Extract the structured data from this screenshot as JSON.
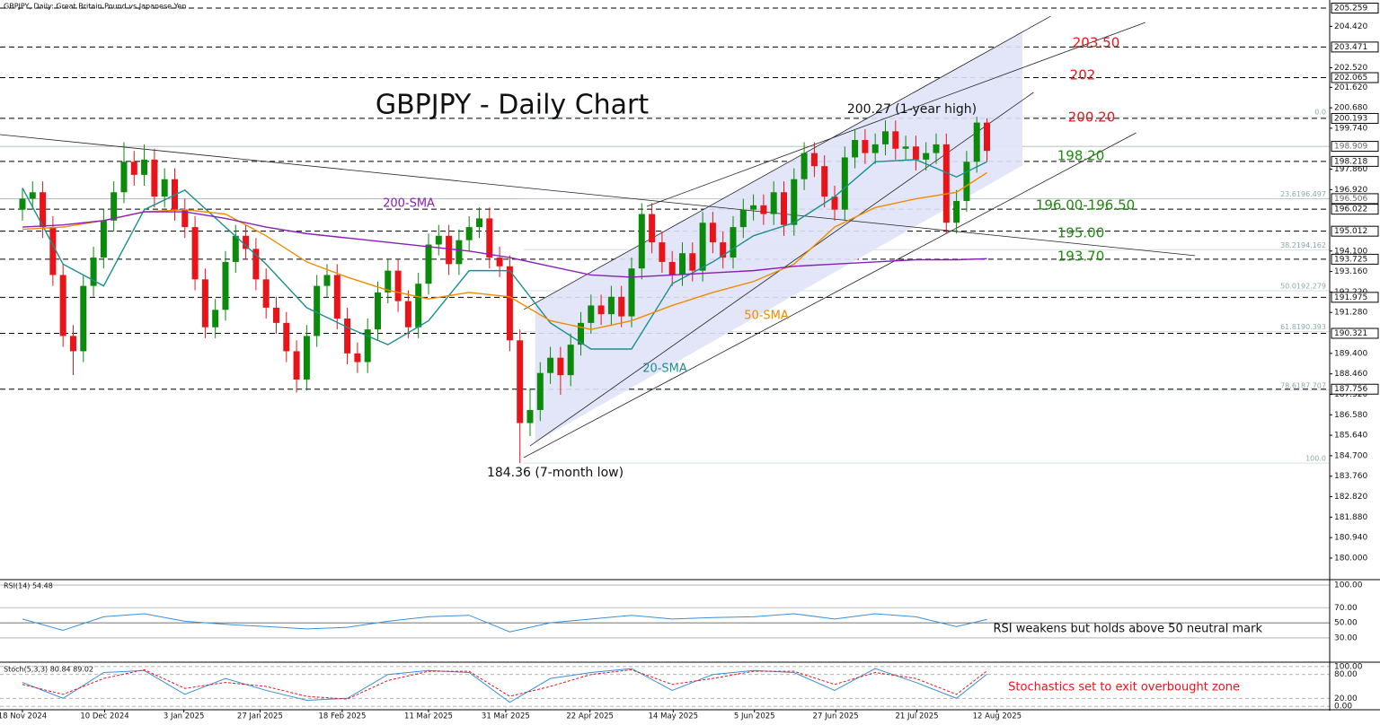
{
  "chart_data": {
    "type": "candlestick",
    "header": "GBPJPY, Daily:  Great Britain Pound vs Japanese Yen",
    "title": "GBPJPY - Daily Chart",
    "up_color": "#0b8a0b",
    "down_color": "#e8141a",
    "xlim": [
      -2.21,
      128.76
    ],
    "xticks": [
      {
        "value": 0,
        "label": "18 Nov 2024"
      },
      {
        "value": 8.1,
        "label": "10 Dec 2024"
      },
      {
        "value": 15.9,
        "label": "3 Jan 2025"
      },
      {
        "value": 23.4,
        "label": "27 Jan 2025"
      },
      {
        "value": 31.5,
        "label": "18 Feb 2025"
      },
      {
        "value": 40,
        "label": "11 Mar 2025"
      },
      {
        "value": 47.6,
        "label": "31 Mar 2025"
      },
      {
        "value": 55.9,
        "label": "22 Apr 2025"
      },
      {
        "value": 64.1,
        "label": "14 May 2025"
      },
      {
        "value": 72.1,
        "label": "5 Jun 2025"
      },
      {
        "value": 80.1,
        "label": "27 Jun 2025"
      },
      {
        "value": 88.1,
        "label": "21 Jul 2025"
      },
      {
        "value": 96,
        "label": "12 Aug 2025"
      }
    ],
    "ylim": [
      179.05,
      205.63
    ],
    "yticks": [
      {
        "value": 204.42,
        "label": "204.420"
      },
      {
        "value": 202.52,
        "label": "202.520"
      },
      {
        "value": 201.62,
        "label": "201.620"
      },
      {
        "value": 200.68,
        "label": "200.680"
      },
      {
        "value": 199.74,
        "label": "199.740"
      },
      {
        "value": 197.86,
        "label": "197.860"
      },
      {
        "value": 196.92,
        "label": "196.920"
      },
      {
        "value": 194.1,
        "label": "194.100"
      },
      {
        "value": 193.16,
        "label": "193.160"
      },
      {
        "value": 192.22,
        "label": "192.220"
      },
      {
        "value": 191.28,
        "label": "191.280"
      },
      {
        "value": 189.4,
        "label": "189.400"
      },
      {
        "value": 188.46,
        "label": "188.460"
      },
      {
        "value": 187.52,
        "label": "187.520"
      },
      {
        "value": 186.58,
        "label": "186.580"
      },
      {
        "value": 185.64,
        "label": "185.640"
      },
      {
        "value": 184.7,
        "label": "184.700"
      },
      {
        "value": 183.76,
        "label": "183.760"
      },
      {
        "value": 182.82,
        "label": "182.820"
      },
      {
        "value": 181.88,
        "label": "181.880"
      },
      {
        "value": 180.94,
        "label": "180.940"
      },
      {
        "value": 180,
        "label": "180.000"
      }
    ],
    "price_levels": [
      {
        "value": 205.259,
        "style": "dashed"
      },
      {
        "value": 203.471,
        "style": "dashed"
      },
      {
        "value": 202.065,
        "style": "dashed"
      },
      {
        "value": 200.193,
        "style": "dashed"
      },
      {
        "value": 198.909,
        "style": "solid"
      },
      {
        "value": 198.218,
        "style": "dashed"
      },
      {
        "value": 196.506,
        "style": "solid"
      },
      {
        "value": 196.022,
        "style": "dashed"
      },
      {
        "value": 195.012,
        "style": "dashed"
      },
      {
        "value": 193.725,
        "style": "dashed"
      },
      {
        "value": 191.975,
        "style": "dashed"
      },
      {
        "value": 190.321,
        "style": "dashed"
      },
      {
        "value": 187.756,
        "style": "dashed"
      }
    ],
    "fib_levels": [
      {
        "value": 200.27,
        "label": "0.0"
      },
      {
        "value": 196.497,
        "label": "23.6196.497"
      },
      {
        "value": 194.162,
        "label": "38.2194.162"
      },
      {
        "value": 192.279,
        "label": "50.0192.279"
      },
      {
        "value": 190.393,
        "label": "61.8190.393"
      },
      {
        "value": 187.707,
        "label": "78.6187.707"
      },
      {
        "value": 184.36,
        "label": "100.0"
      }
    ],
    "open": [
      196.0,
      196.5,
      196.8,
      195.2,
      193.0,
      190.2,
      189.5,
      192.5,
      193.8,
      195.5,
      196.8,
      198.2,
      197.6,
      198.3,
      196.6,
      197.4,
      196.0,
      195.2,
      192.8,
      190.6,
      191.4,
      193.6,
      194.8,
      194.2,
      192.8,
      191.5,
      190.8,
      189.5,
      188.2,
      190.2,
      192.5,
      193.0,
      191.0,
      189.4,
      189.0,
      190.5,
      192.2,
      193.2,
      191.8,
      190.6,
      192.6,
      194.4,
      194.8,
      193.5,
      194.6,
      195.2,
      195.6,
      193.8,
      193.4,
      190.0,
      186.2,
      186.8,
      188.5,
      189.2,
      188.4,
      189.8,
      190.8,
      191.6,
      191.2,
      192.0,
      191.1,
      193.3,
      195.8,
      194.5,
      193.6,
      193.0,
      194.0,
      193.2,
      195.4,
      194.5,
      193.8,
      195.2,
      196.0,
      196.2,
      195.8,
      196.8,
      195.3,
      197.4,
      198.6,
      198.0,
      196.6,
      196.0,
      198.4,
      199.2,
      198.6,
      199.0,
      199.6,
      198.8,
      198.9,
      198.3,
      198.6,
      199.0,
      195.4,
      196.4,
      198.2,
      200.0
    ],
    "high": [
      197.0,
      197.3,
      197.3,
      195.7,
      193.5,
      190.7,
      193.0,
      194.3,
      196.0,
      197.3,
      199.1,
      198.7,
      199.0,
      198.8,
      197.9,
      197.9,
      196.5,
      195.7,
      193.3,
      191.9,
      194.1,
      195.3,
      195.3,
      194.7,
      193.3,
      192.0,
      191.3,
      190.0,
      190.7,
      193.0,
      193.5,
      193.5,
      191.5,
      189.9,
      191.0,
      192.7,
      193.7,
      193.7,
      192.3,
      193.1,
      194.9,
      195.3,
      195.3,
      195.1,
      195.7,
      196.1,
      196.1,
      194.3,
      193.9,
      190.5,
      187.8,
      189.0,
      189.7,
      189.7,
      190.3,
      191.3,
      192.1,
      192.1,
      192.5,
      192.5,
      193.8,
      196.3,
      196.3,
      195.0,
      194.1,
      194.5,
      194.5,
      195.9,
      195.9,
      195.0,
      195.7,
      196.5,
      196.7,
      196.7,
      197.3,
      197.3,
      197.9,
      199.1,
      199.1,
      198.5,
      197.1,
      198.9,
      199.7,
      199.7,
      199.5,
      200.1,
      200.1,
      199.4,
      199.4,
      199.1,
      199.5,
      199.5,
      196.9,
      198.7,
      200.27,
      200.2
    ],
    "low": [
      195.5,
      196.0,
      194.7,
      192.5,
      189.7,
      188.4,
      189.0,
      192.0,
      193.3,
      195.0,
      196.3,
      197.1,
      197.1,
      196.1,
      196.1,
      195.5,
      194.7,
      192.3,
      190.1,
      190.1,
      190.9,
      193.1,
      193.7,
      192.3,
      191.0,
      190.3,
      189.0,
      187.6,
      187.7,
      189.7,
      192.0,
      190.5,
      188.9,
      188.5,
      188.5,
      190.0,
      191.7,
      191.3,
      190.1,
      190.1,
      192.1,
      193.9,
      193.0,
      193.0,
      194.1,
      194.7,
      193.3,
      192.9,
      189.5,
      184.36,
      185.6,
      186.3,
      188.0,
      187.5,
      187.9,
      189.3,
      190.3,
      190.7,
      190.7,
      190.6,
      190.6,
      192.8,
      194.0,
      193.1,
      192.5,
      192.5,
      192.7,
      192.7,
      194.0,
      193.3,
      193.3,
      194.7,
      195.5,
      195.3,
      195.3,
      194.8,
      194.8,
      196.9,
      197.5,
      196.1,
      195.5,
      195.5,
      197.9,
      198.1,
      198.1,
      198.5,
      198.3,
      198.3,
      197.8,
      197.8,
      198.1,
      194.9,
      194.9,
      195.9,
      197.7,
      198.2
    ],
    "close": [
      196.5,
      196.8,
      195.2,
      193.0,
      190.2,
      189.5,
      192.5,
      193.8,
      195.5,
      196.8,
      198.2,
      197.6,
      198.3,
      196.6,
      197.4,
      196.0,
      195.2,
      192.8,
      190.6,
      191.4,
      193.6,
      194.8,
      194.2,
      192.8,
      191.5,
      190.8,
      189.5,
      188.2,
      190.2,
      192.5,
      193.0,
      191.0,
      189.4,
      189.0,
      190.5,
      192.2,
      193.2,
      191.8,
      190.6,
      192.6,
      194.4,
      194.8,
      193.5,
      194.6,
      195.2,
      195.6,
      193.8,
      193.4,
      190.0,
      186.2,
      186.8,
      188.5,
      189.2,
      188.4,
      189.8,
      190.8,
      191.6,
      191.2,
      192.0,
      191.1,
      193.3,
      195.8,
      194.5,
      193.6,
      193.0,
      194.0,
      193.2,
      195.4,
      194.5,
      193.8,
      195.2,
      196.0,
      196.2,
      195.8,
      196.8,
      195.3,
      197.4,
      198.6,
      198.0,
      196.6,
      196.0,
      198.4,
      199.2,
      198.6,
      199.0,
      199.6,
      198.8,
      198.9,
      198.3,
      198.6,
      199.0,
      195.4,
      196.4,
      198.2,
      200.0,
      198.7
    ],
    "series": [
      {
        "name": "20-SMA",
        "color": "#1b8f8f",
        "x": [
          0,
          4,
          8,
          12,
          16,
          20,
          24,
          28,
          32,
          36,
          40,
          44,
          48,
          52,
          56,
          60,
          64,
          68,
          72,
          76,
          80,
          84,
          88,
          92,
          95
        ],
        "values": [
          197.0,
          193.5,
          192.5,
          196.0,
          196.9,
          195.2,
          193.5,
          191.5,
          190.6,
          189.8,
          190.9,
          193.2,
          193.2,
          190.8,
          189.6,
          189.6,
          192.6,
          193.6,
          194.8,
          195.4,
          196.6,
          198.2,
          198.3,
          197.5,
          198.2
        ]
      },
      {
        "name": "50-SMA",
        "color": "#f08a00",
        "x": [
          0,
          4,
          8,
          12,
          16,
          20,
          24,
          28,
          32,
          36,
          40,
          44,
          48,
          52,
          56,
          60,
          64,
          68,
          72,
          76,
          80,
          84,
          88,
          92,
          95
        ],
        "values": [
          195.1,
          195.2,
          195.5,
          195.9,
          196.0,
          195.8,
          194.8,
          193.6,
          192.9,
          192.3,
          191.9,
          192.2,
          192.0,
          190.9,
          190.5,
          190.9,
          191.6,
          192.2,
          192.7,
          193.5,
          195.2,
          196.1,
          196.5,
          196.8,
          197.7
        ]
      },
      {
        "name": "200-SMA",
        "color": "#8a1fb8",
        "x": [
          0,
          4,
          8,
          12,
          16,
          20,
          24,
          28,
          32,
          36,
          40,
          44,
          48,
          52,
          56,
          60,
          64,
          68,
          72,
          76,
          80,
          84,
          88,
          92,
          95
        ],
        "values": [
          195.2,
          195.3,
          195.5,
          195.9,
          195.9,
          195.6,
          195.2,
          194.9,
          194.7,
          194.5,
          194.3,
          194.1,
          193.8,
          193.4,
          193.0,
          192.9,
          193.0,
          193.1,
          193.2,
          193.4,
          193.5,
          193.6,
          193.7,
          193.7,
          193.75
        ]
      }
    ],
    "trendlines": [
      {
        "x": [
          -2.2,
          115.5
        ],
        "values": [
          199.45,
          193.89
        ]
      },
      {
        "x": [
          49.4,
          109.7
        ],
        "values": [
          184.62,
          199.53
        ]
      },
      {
        "x": [
          49.4,
          101.3
        ],
        "values": [
          191.42,
          204.89
        ]
      },
      {
        "x": [
          50,
          99.6
        ],
        "values": [
          185.15,
          201.39
        ]
      },
      {
        "x": [
          61.5,
          110.6
        ],
        "values": [
          196.15,
          204.6
        ]
      }
    ],
    "annotations": [
      {
        "text": "203.50",
        "color": "#e8141a"
      },
      {
        "text": "202",
        "color": "#e8141a"
      },
      {
        "text": "200.20",
        "color": "#e8141a"
      },
      {
        "text": "198.20",
        "color": "#1e8a0e"
      },
      {
        "text": "196.00-196.50",
        "color": "#1e8a0e"
      },
      {
        "text": "195.00",
        "color": "#1e8a0e"
      },
      {
        "text": "193.70",
        "color": "#1e8a0e"
      }
    ],
    "notes": [
      "200.27 (1-year high)",
      "184.36 (7-month low)"
    ],
    "rsi": {
      "label": "RSI(14) 54.48",
      "note": "RSI weakens but holds above 50 neutral mark",
      "color": "#3b8fd9",
      "ylim": [
        -1,
        106
      ],
      "yticks": [
        {
          "value": 100,
          "label": "100.00"
        },
        {
          "value": 70,
          "label": "70.00"
        },
        {
          "value": 50,
          "label": "50.00"
        },
        {
          "value": 30,
          "label": "30.00"
        }
      ],
      "x": [
        0,
        4,
        8,
        12,
        16,
        20,
        24,
        28,
        32,
        36,
        40,
        44,
        48,
        52,
        56,
        60,
        64,
        68,
        72,
        76,
        80,
        84,
        88,
        92,
        95
      ],
      "values": [
        55,
        40,
        58,
        62,
        52,
        48,
        45,
        42,
        44,
        52,
        58,
        60,
        38,
        50,
        55,
        60,
        55,
        57,
        58,
        62,
        55,
        62,
        58,
        45,
        54.48
      ]
    },
    "stoch": {
      "label": "Stoch(5,3,3) 80.84 89.02",
      "note": "Stochastics set to exit overbought zone",
      "ylim": [
        -6.5,
        106.5
      ],
      "yticks": [
        {
          "value": 100,
          "label": "100.00"
        },
        {
          "value": 80,
          "label": "80.00"
        },
        {
          "value": 20,
          "label": "20.00"
        },
        {
          "value": 0,
          "label": "0.00"
        }
      ],
      "x": [
        0,
        4,
        8,
        12,
        16,
        20,
        24,
        28,
        32,
        36,
        40,
        44,
        48,
        52,
        56,
        60,
        64,
        68,
        72,
        76,
        80,
        84,
        88,
        92,
        95
      ],
      "series": [
        {
          "color": "#3b8fd9",
          "values": [
            60,
            20,
            85,
            90,
            30,
            70,
            40,
            15,
            20,
            80,
            90,
            85,
            10,
            70,
            85,
            95,
            40,
            80,
            90,
            85,
            40,
            95,
            60,
            20,
            80.84
          ]
        },
        {
          "color": "#e8141a",
          "values": [
            55,
            30,
            70,
            92,
            45,
            60,
            50,
            25,
            18,
            65,
            88,
            88,
            25,
            50,
            80,
            92,
            55,
            70,
            88,
            88,
            55,
            85,
            70,
            30,
            89.02
          ]
        }
      ]
    }
  }
}
